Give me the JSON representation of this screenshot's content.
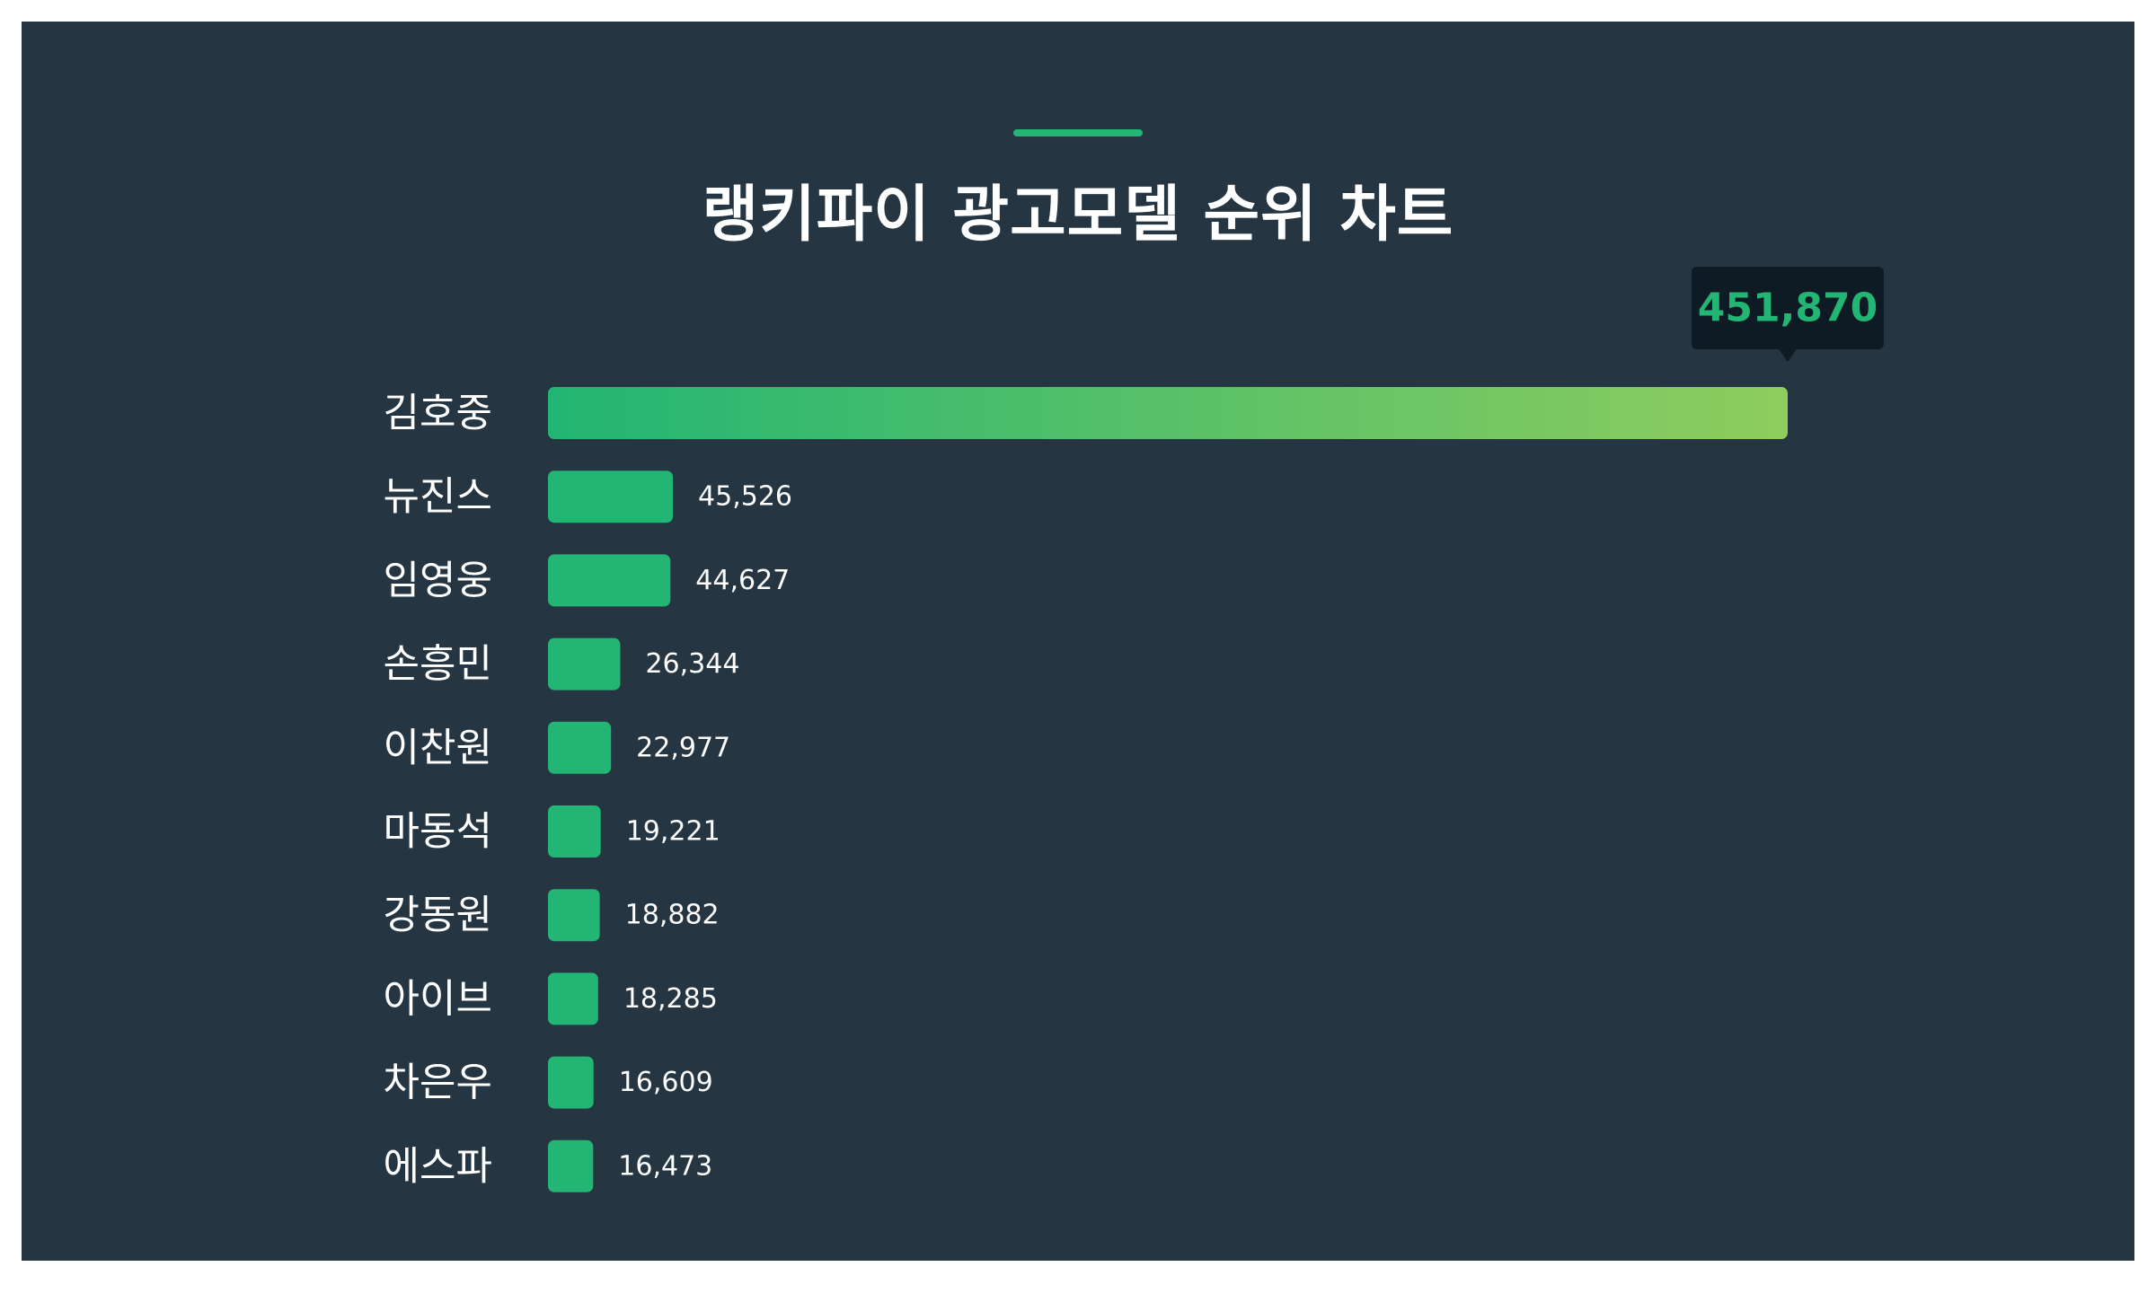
{
  "title": "랭키파이 광고모델 순위 차트",
  "colors": {
    "background": "#253541",
    "bar": "#22b573",
    "bar_gradient_end": "#8ecd5e",
    "tooltip_bg": "#0f1b24",
    "tooltip_text": "#22b573"
  },
  "chart_data": {
    "type": "bar",
    "orientation": "horizontal",
    "categories": [
      "김호중",
      "뉴진스",
      "임영웅",
      "손흥민",
      "이찬원",
      "마동석",
      "강동원",
      "아이브",
      "차은우",
      "에스파"
    ],
    "values": [
      451870,
      45526,
      44627,
      26344,
      22977,
      19221,
      18882,
      18285,
      16609,
      16473
    ],
    "value_labels": [
      "451,870",
      "45,526",
      "44,627",
      "26,344",
      "22,977",
      "19,221",
      "18,882",
      "18,285",
      "16,609",
      "16,473"
    ],
    "highlight_index": 0,
    "xlim": [
      0,
      451870
    ],
    "grid": false,
    "legend": false
  }
}
